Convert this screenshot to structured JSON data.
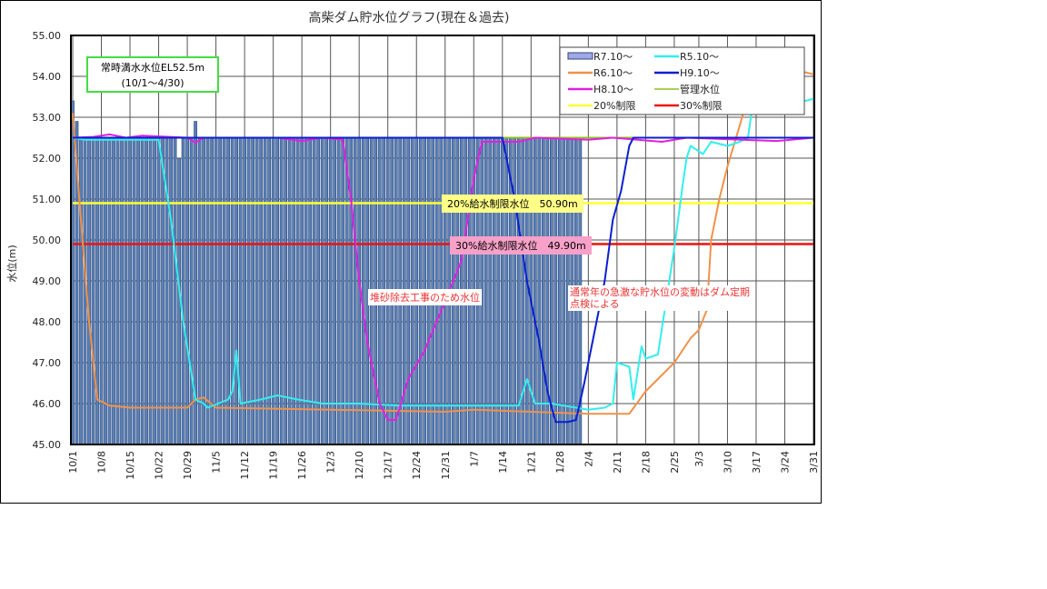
{
  "chart_data": {
    "type": "bar+line",
    "title": "高柴ダム貯水位グラフ(現在＆過去)",
    "ylabel": "水位(m)",
    "xlabel": "",
    "ylim": [
      45,
      55
    ],
    "yticks": [
      "45.00",
      "46.00",
      "47.00",
      "48.00",
      "49.00",
      "50.00",
      "51.00",
      "52.00",
      "53.00",
      "54.00",
      "55.00"
    ],
    "xlim": [
      "10/1",
      "3/31"
    ],
    "xticks": [
      "10/1",
      "10/8",
      "10/15",
      "10/22",
      "10/29",
      "11/5",
      "11/12",
      "11/19",
      "11/26",
      "12/3",
      "12/10",
      "12/17",
      "12/24",
      "12/31",
      "1/7",
      "1/14",
      "1/21",
      "1/28",
      "2/4",
      "2/11",
      "2/18",
      "2/25",
      "3/3",
      "3/10",
      "3/17",
      "3/24",
      "3/31"
    ],
    "grid": true,
    "legend_position": "top-right",
    "bar_series": {
      "name": "R7.10～",
      "start": "10/1",
      "color": "#5b7fb5",
      "legend_fill": "#9fa8e8",
      "values": [
        53.4,
        52.9,
        52.5,
        52.5,
        52.5,
        52.5,
        52.5,
        52.5,
        52.5,
        52.5,
        52.5,
        52.5,
        52.5,
        52.5,
        52.5,
        52.5,
        52.5,
        52.5,
        52.5,
        52.5,
        52.5,
        52.5,
        52.5,
        52.5,
        52.5,
        52.5,
        52.0,
        52.5,
        52.5,
        52.5,
        52.9,
        52.5,
        52.5,
        52.5,
        52.5,
        52.5,
        52.5,
        52.5,
        52.5,
        52.5,
        52.5,
        52.5,
        52.5,
        52.5,
        52.5,
        52.5,
        52.5,
        52.5,
        52.5,
        52.5,
        52.5,
        52.5,
        52.5,
        52.5,
        52.5,
        52.5,
        52.5,
        52.5,
        52.5,
        52.5,
        52.5,
        52.5,
        52.5,
        52.5,
        52.5,
        52.5,
        52.5,
        52.5,
        52.5,
        52.5,
        52.5,
        52.5,
        52.5,
        52.5,
        52.5,
        52.5,
        52.5,
        52.5,
        52.5,
        52.5,
        52.5,
        52.5,
        52.5,
        52.5,
        52.5,
        52.5,
        52.5,
        52.5,
        52.5,
        52.5,
        52.5,
        52.5,
        52.5,
        52.5,
        52.5,
        52.5,
        52.5,
        52.5,
        52.5,
        52.5,
        52.5,
        52.5,
        52.5,
        52.5,
        52.5,
        52.5,
        52.5,
        52.5,
        52.5,
        52.5,
        52.5,
        52.5,
        52.5,
        52.5,
        52.5,
        52.5,
        52.5,
        52.5,
        52.5,
        52.5,
        52.5,
        52.5,
        52.5,
        52.5,
        52.5
      ]
    },
    "series": [
      {
        "name": "R5.10～",
        "color": "#33eeee",
        "points": [
          [
            "10/1",
            52.5
          ],
          [
            "10/4",
            52.45
          ],
          [
            "10/22",
            52.45
          ],
          [
            "10/25",
            50.5
          ],
          [
            "10/28",
            48.0
          ],
          [
            "10/31",
            46.1
          ],
          [
            "11/2",
            46.0
          ],
          [
            "11/3",
            45.9
          ],
          [
            "11/8",
            46.1
          ],
          [
            "11/9",
            46.3
          ],
          [
            "11/10",
            47.3
          ],
          [
            "11/11",
            46.0
          ],
          [
            "11/16",
            46.1
          ],
          [
            "11/20",
            46.2
          ],
          [
            "11/25",
            46.1
          ],
          [
            "12/1",
            46.0
          ],
          [
            "12/10",
            46.0
          ],
          [
            "12/20",
            45.95
          ],
          [
            "1/5",
            45.95
          ],
          [
            "1/18",
            45.95
          ],
          [
            "1/20",
            46.6
          ],
          [
            "1/22",
            46.0
          ],
          [
            "1/26",
            46.0
          ],
          [
            "2/4",
            45.85
          ],
          [
            "2/8",
            45.9
          ],
          [
            "2/10",
            46.0
          ],
          [
            "2/11",
            47.0
          ],
          [
            "2/14",
            46.9
          ],
          [
            "2/15",
            46.1
          ],
          [
            "2/17",
            47.4
          ],
          [
            "2/18",
            47.1
          ],
          [
            "2/21",
            47.2
          ],
          [
            "2/23",
            48.5
          ],
          [
            "2/25",
            49.8
          ],
          [
            "2/27",
            51.3
          ],
          [
            "2/28",
            52.0
          ],
          [
            "3/1",
            52.3
          ],
          [
            "3/4",
            52.1
          ],
          [
            "3/6",
            52.4
          ],
          [
            "3/10",
            52.3
          ],
          [
            "3/13",
            52.4
          ],
          [
            "3/15",
            52.5
          ],
          [
            "3/16",
            53.2
          ],
          [
            "3/18",
            53.3
          ],
          [
            "3/21",
            53.4
          ],
          [
            "3/24",
            53.25
          ],
          [
            "3/27",
            53.35
          ],
          [
            "3/31",
            53.45
          ]
        ]
      },
      {
        "name": "R6.10～",
        "color": "#f0924a",
        "points": [
          [
            "10/1",
            53.1
          ],
          [
            "10/3",
            50.5
          ],
          [
            "10/5",
            48.0
          ],
          [
            "10/7",
            46.1
          ],
          [
            "10/10",
            45.95
          ],
          [
            "10/15",
            45.9
          ],
          [
            "10/22",
            45.9
          ],
          [
            "10/29",
            45.9
          ],
          [
            "10/31",
            46.1
          ],
          [
            "11/2",
            46.15
          ],
          [
            "11/5",
            45.9
          ],
          [
            "12/3",
            45.85
          ],
          [
            "12/31",
            45.8
          ],
          [
            "1/7",
            45.85
          ],
          [
            "2/4",
            45.75
          ],
          [
            "2/14",
            45.75
          ],
          [
            "2/18",
            46.3
          ],
          [
            "2/25",
            47.0
          ],
          [
            "3/1",
            47.6
          ],
          [
            "3/3",
            47.8
          ],
          [
            "3/5",
            48.3
          ],
          [
            "3/6",
            50.0
          ],
          [
            "3/8",
            51.0
          ],
          [
            "3/10",
            51.8
          ],
          [
            "3/13",
            52.8
          ],
          [
            "3/15",
            53.5
          ],
          [
            "3/17",
            54.0
          ],
          [
            "3/20",
            54.0
          ],
          [
            "3/21",
            54.15
          ],
          [
            "3/24",
            53.9
          ],
          [
            "3/27",
            54.0
          ],
          [
            "3/29",
            54.1
          ],
          [
            "3/31",
            54.05
          ]
        ]
      },
      {
        "name": "H9.10～",
        "color": "#0a1fd0",
        "points": [
          [
            "10/1",
            52.5
          ],
          [
            "1/14",
            52.5
          ],
          [
            "1/17",
            51.0
          ],
          [
            "1/20",
            49.0
          ],
          [
            "1/23",
            47.5
          ],
          [
            "1/25",
            46.3
          ],
          [
            "1/27",
            45.55
          ],
          [
            "1/30",
            45.55
          ],
          [
            "2/1",
            45.6
          ],
          [
            "2/3",
            46.5
          ],
          [
            "2/5",
            47.5
          ],
          [
            "2/8",
            49.0
          ],
          [
            "2/10",
            50.5
          ],
          [
            "2/12",
            51.2
          ],
          [
            "2/14",
            52.3
          ],
          [
            "2/15",
            52.5
          ],
          [
            "3/31",
            52.5
          ]
        ]
      },
      {
        "name": "H8.10～",
        "color": "#e020e0",
        "points": [
          [
            "10/1",
            52.5
          ],
          [
            "10/6",
            52.52
          ],
          [
            "10/10",
            52.58
          ],
          [
            "10/14",
            52.5
          ],
          [
            "10/18",
            52.55
          ],
          [
            "10/29",
            52.5
          ],
          [
            "10/31",
            52.38
          ],
          [
            "11/2",
            52.5
          ],
          [
            "11/20",
            52.5
          ],
          [
            "11/26",
            52.42
          ],
          [
            "12/1",
            52.5
          ],
          [
            "12/6",
            52.45
          ],
          [
            "12/8",
            51.0
          ],
          [
            "12/10",
            49.0
          ],
          [
            "12/12",
            47.5
          ],
          [
            "12/15",
            46.0
          ],
          [
            "12/17",
            45.6
          ],
          [
            "12/19",
            45.6
          ],
          [
            "12/22",
            46.6
          ],
          [
            "12/26",
            47.3
          ],
          [
            "12/31",
            48.5
          ],
          [
            "1/4",
            49.5
          ],
          [
            "1/7",
            51.5
          ],
          [
            "1/9",
            52.4
          ],
          [
            "1/18",
            52.4
          ],
          [
            "1/22",
            52.5
          ],
          [
            "2/4",
            52.45
          ],
          [
            "2/10",
            52.5
          ],
          [
            "2/22",
            52.4
          ],
          [
            "2/28",
            52.5
          ],
          [
            "3/22",
            52.42
          ],
          [
            "3/31",
            52.5
          ]
        ]
      },
      {
        "name": "管理水位",
        "color": "#8fbf20",
        "points": [
          [
            "10/1",
            52.5
          ],
          [
            "3/31",
            52.5
          ]
        ]
      },
      {
        "name": "20%制限",
        "color": "#ffff33",
        "points": [
          [
            "10/1",
            50.9
          ],
          [
            "3/31",
            50.9
          ]
        ]
      },
      {
        "name": "30%制限",
        "color": "#ee1111",
        "points": [
          [
            "10/1",
            49.9
          ],
          [
            "3/31",
            49.9
          ]
        ]
      }
    ],
    "annotations": {
      "full_level": [
        "常時満水水位EL52.5m",
        "(10/1～4/30)"
      ],
      "limit20": "20%給水制限水位　50.90m",
      "limit30": "30%給水制限水位　49.90m",
      "sediment_note": "堆砂除去工事のため水位",
      "inspection_note": [
        "通常年の急激な貯水位の変動はダム定期",
        "点検による"
      ]
    }
  }
}
